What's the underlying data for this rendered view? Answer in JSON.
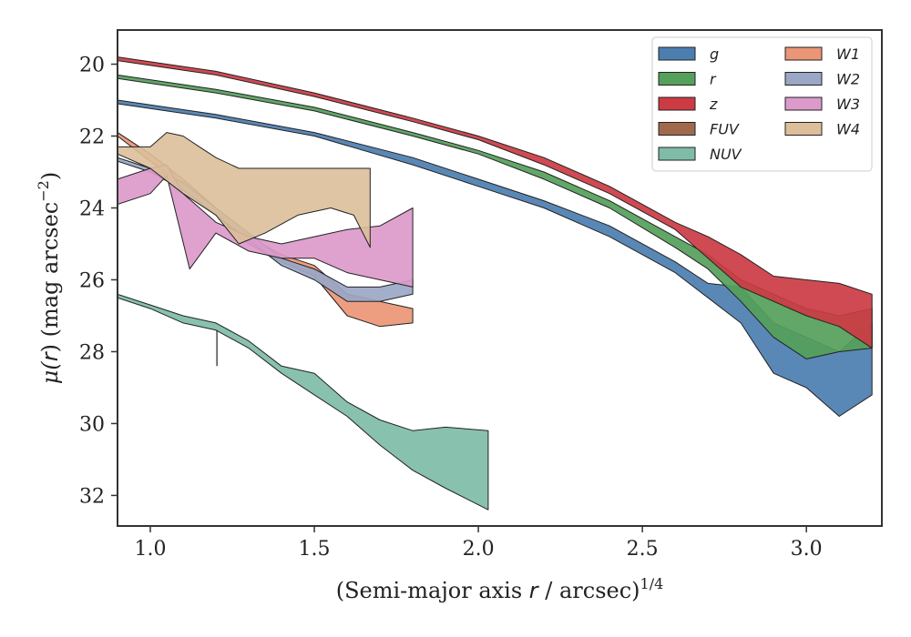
{
  "chart_data": {
    "type": "area",
    "xlabel_parts": [
      "(Semi-major axis ",
      "r",
      " / arcsec)",
      "1/4"
    ],
    "ylabel_parts": [
      "μ(",
      "r",
      ") (mag arcsec",
      "−2",
      ")"
    ],
    "xlim": [
      0.9,
      3.23
    ],
    "ylim": [
      32.85,
      19.05
    ],
    "y_inverted": true,
    "x_ticks": [
      1.0,
      1.5,
      2.0,
      2.5,
      3.0
    ],
    "x_tick_labels": [
      "1.0",
      "1.5",
      "2.0",
      "2.5",
      "3.0"
    ],
    "y_ticks": [
      20,
      22,
      24,
      26,
      28,
      30,
      32
    ],
    "y_tick_labels": [
      "20",
      "22",
      "24",
      "26",
      "28",
      "30",
      "32"
    ],
    "grid": false,
    "legend_position": "top-right",
    "legend_columns": 2,
    "series": [
      {
        "name": "g",
        "color": "#4c7eb0",
        "upper": [
          [
            0.9,
            21.0
          ],
          [
            1.2,
            21.4
          ],
          [
            1.5,
            21.9
          ],
          [
            1.8,
            22.6
          ],
          [
            2.0,
            23.2
          ],
          [
            2.2,
            23.8
          ],
          [
            2.4,
            24.5
          ],
          [
            2.6,
            25.5
          ],
          [
            2.7,
            26.1
          ],
          [
            2.8,
            26.2
          ],
          [
            2.9,
            27.2
          ],
          [
            3.0,
            27.6
          ],
          [
            3.1,
            28.0
          ],
          [
            3.2,
            27.2
          ]
        ],
        "lower": [
          [
            0.9,
            21.1
          ],
          [
            1.2,
            21.5
          ],
          [
            1.5,
            22.0
          ],
          [
            1.8,
            22.8
          ],
          [
            2.0,
            23.4
          ],
          [
            2.2,
            24.0
          ],
          [
            2.4,
            24.8
          ],
          [
            2.6,
            25.8
          ],
          [
            2.7,
            26.5
          ],
          [
            2.8,
            27.2
          ],
          [
            2.9,
            28.6
          ],
          [
            3.0,
            29.0
          ],
          [
            3.1,
            29.8
          ],
          [
            3.2,
            29.2
          ]
        ]
      },
      {
        "name": "r",
        "color": "#55a05a",
        "upper": [
          [
            0.9,
            20.3
          ],
          [
            1.2,
            20.7
          ],
          [
            1.5,
            21.2
          ],
          [
            1.8,
            21.9
          ],
          [
            2.0,
            22.4
          ],
          [
            2.2,
            23.0
          ],
          [
            2.4,
            23.8
          ],
          [
            2.6,
            24.8
          ],
          [
            2.7,
            25.3
          ],
          [
            2.8,
            26.0
          ],
          [
            2.9,
            26.4
          ],
          [
            3.0,
            26.8
          ],
          [
            3.1,
            27.0
          ],
          [
            3.2,
            26.8
          ]
        ],
        "lower": [
          [
            0.9,
            20.4
          ],
          [
            1.2,
            20.8
          ],
          [
            1.5,
            21.3
          ],
          [
            1.8,
            22.0
          ],
          [
            2.0,
            22.5
          ],
          [
            2.2,
            23.2
          ],
          [
            2.4,
            24.0
          ],
          [
            2.6,
            25.1
          ],
          [
            2.7,
            25.7
          ],
          [
            2.8,
            26.6
          ],
          [
            2.9,
            27.6
          ],
          [
            3.0,
            28.2
          ],
          [
            3.1,
            28.0
          ],
          [
            3.2,
            27.9
          ]
        ]
      },
      {
        "name": "z",
        "color": "#cc3b44",
        "upper": [
          [
            0.9,
            19.8
          ],
          [
            1.2,
            20.2
          ],
          [
            1.5,
            20.8
          ],
          [
            1.8,
            21.5
          ],
          [
            2.0,
            22.0
          ],
          [
            2.2,
            22.6
          ],
          [
            2.4,
            23.4
          ],
          [
            2.6,
            24.4
          ],
          [
            2.7,
            24.8
          ],
          [
            2.8,
            25.3
          ],
          [
            2.9,
            25.9
          ],
          [
            3.0,
            26.0
          ],
          [
            3.1,
            26.1
          ],
          [
            3.2,
            26.4
          ]
        ],
        "lower": [
          [
            0.9,
            19.9
          ],
          [
            1.2,
            20.3
          ],
          [
            1.5,
            20.9
          ],
          [
            1.8,
            21.6
          ],
          [
            2.0,
            22.1
          ],
          [
            2.2,
            22.8
          ],
          [
            2.4,
            23.6
          ],
          [
            2.6,
            24.6
          ],
          [
            2.7,
            25.4
          ],
          [
            2.8,
            26.2
          ],
          [
            2.9,
            26.6
          ],
          [
            3.0,
            27.0
          ],
          [
            3.1,
            27.3
          ],
          [
            3.2,
            27.9
          ]
        ]
      },
      {
        "name": "FUV",
        "color": "#a0694b",
        "upper": [],
        "lower": []
      },
      {
        "name": "NUV",
        "color": "#7fbca8",
        "upper": [
          [
            0.9,
            26.4
          ],
          [
            1.0,
            26.7
          ],
          [
            1.1,
            27.0
          ],
          [
            1.2,
            27.2
          ],
          [
            1.3,
            27.7
          ],
          [
            1.4,
            28.4
          ],
          [
            1.5,
            28.6
          ],
          [
            1.6,
            29.4
          ],
          [
            1.7,
            29.9
          ],
          [
            1.8,
            30.2
          ],
          [
            1.9,
            30.1
          ],
          [
            2.03,
            30.2
          ]
        ],
        "lower": [
          [
            0.9,
            26.5
          ],
          [
            1.0,
            26.8
          ],
          [
            1.1,
            27.2
          ],
          [
            1.2,
            27.4
          ],
          [
            1.3,
            27.9
          ],
          [
            1.4,
            28.6
          ],
          [
            1.5,
            29.2
          ],
          [
            1.6,
            29.8
          ],
          [
            1.7,
            30.6
          ],
          [
            1.8,
            31.3
          ],
          [
            1.9,
            31.8
          ],
          [
            2.03,
            32.4
          ]
        ]
      },
      {
        "name": "W1",
        "color": "#eb9676",
        "upper": [
          [
            0.9,
            21.9
          ],
          [
            1.0,
            22.5
          ],
          [
            1.1,
            23.2
          ],
          [
            1.2,
            24.0
          ],
          [
            1.3,
            24.8
          ],
          [
            1.4,
            25.3
          ],
          [
            1.5,
            25.6
          ],
          [
            1.6,
            26.4
          ],
          [
            1.7,
            26.6
          ],
          [
            1.8,
            26.8
          ]
        ],
        "lower": [
          [
            0.9,
            22.0
          ],
          [
            1.0,
            22.7
          ],
          [
            1.1,
            23.4
          ],
          [
            1.2,
            24.2
          ],
          [
            1.3,
            25.0
          ],
          [
            1.4,
            25.5
          ],
          [
            1.5,
            25.9
          ],
          [
            1.6,
            27.0
          ],
          [
            1.7,
            27.3
          ],
          [
            1.8,
            27.2
          ]
        ]
      },
      {
        "name": "W2",
        "color": "#9aa7c5",
        "upper": [
          [
            0.9,
            22.6
          ],
          [
            1.0,
            22.9
          ],
          [
            1.1,
            23.3
          ],
          [
            1.2,
            24.0
          ],
          [
            1.3,
            24.7
          ],
          [
            1.4,
            25.4
          ],
          [
            1.5,
            25.7
          ],
          [
            1.6,
            26.2
          ],
          [
            1.7,
            26.2
          ],
          [
            1.8,
            26.0
          ]
        ],
        "lower": [
          [
            0.9,
            22.7
          ],
          [
            1.0,
            23.0
          ],
          [
            1.1,
            23.5
          ],
          [
            1.2,
            24.2
          ],
          [
            1.3,
            24.9
          ],
          [
            1.4,
            25.6
          ],
          [
            1.5,
            26.0
          ],
          [
            1.6,
            26.6
          ],
          [
            1.7,
            26.6
          ],
          [
            1.8,
            26.4
          ]
        ]
      },
      {
        "name": "W3",
        "color": "#dc9acb",
        "upper": [
          [
            0.9,
            23.2
          ],
          [
            1.0,
            22.9
          ],
          [
            1.05,
            22.8
          ],
          [
            1.1,
            23.6
          ],
          [
            1.2,
            24.4
          ],
          [
            1.3,
            24.8
          ],
          [
            1.4,
            25.0
          ],
          [
            1.5,
            24.8
          ],
          [
            1.6,
            24.6
          ],
          [
            1.7,
            24.5
          ],
          [
            1.8,
            24.0
          ]
        ],
        "lower": [
          [
            0.9,
            23.9
          ],
          [
            1.0,
            23.6
          ],
          [
            1.05,
            23.1
          ],
          [
            1.12,
            25.7
          ],
          [
            1.2,
            24.7
          ],
          [
            1.3,
            25.2
          ],
          [
            1.4,
            25.4
          ],
          [
            1.5,
            25.4
          ],
          [
            1.6,
            25.8
          ],
          [
            1.7,
            26.0
          ],
          [
            1.8,
            26.2
          ]
        ]
      },
      {
        "name": "W4",
        "color": "#dcbf9a",
        "upper": [
          [
            0.9,
            22.3
          ],
          [
            1.0,
            22.3
          ],
          [
            1.05,
            21.9
          ],
          [
            1.1,
            22.0
          ],
          [
            1.15,
            22.3
          ],
          [
            1.2,
            22.6
          ],
          [
            1.27,
            22.9
          ],
          [
            1.4,
            22.9
          ],
          [
            1.5,
            22.9
          ],
          [
            1.6,
            22.9
          ],
          [
            1.67,
            22.9
          ]
        ],
        "lower": [
          [
            0.9,
            22.5
          ],
          [
            1.0,
            22.9
          ],
          [
            1.1,
            23.6
          ],
          [
            1.2,
            24.2
          ],
          [
            1.27,
            25.0
          ],
          [
            1.35,
            24.7
          ],
          [
            1.45,
            24.2
          ],
          [
            1.55,
            24.0
          ],
          [
            1.62,
            24.2
          ],
          [
            1.67,
            25.1
          ]
        ]
      }
    ]
  }
}
